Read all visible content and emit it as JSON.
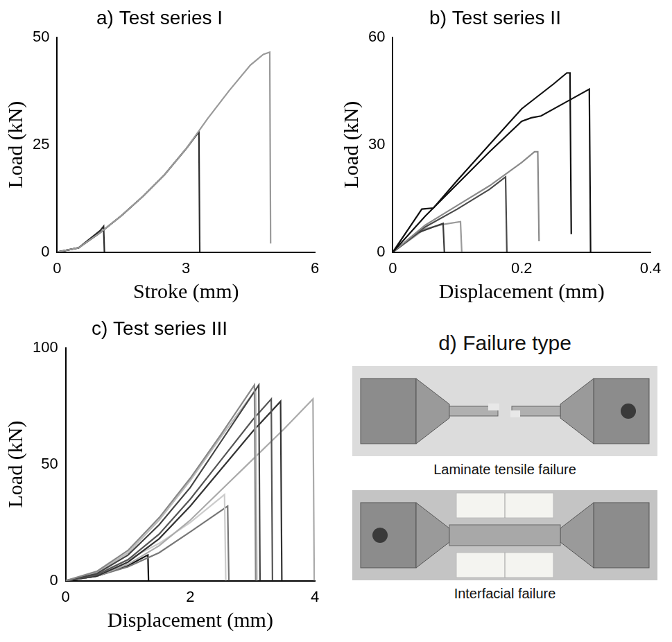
{
  "chart_data": [
    {
      "type": "line",
      "title": "a) Test series I",
      "x_label": "Stroke (mm)",
      "y_label": "Load (kN)",
      "xlim": [
        0,
        6
      ],
      "xticks": [
        0,
        3,
        6
      ],
      "ylim": [
        0,
        50
      ],
      "yticks": [
        0,
        25,
        50
      ],
      "grid": false,
      "series": [
        {
          "color": "#9a9a9a",
          "x": [
            0,
            0.5,
            1,
            1.5,
            2,
            2.5,
            3,
            3.5,
            4,
            4.5,
            4.8,
            4.95,
            4.97
          ],
          "values": [
            0,
            1,
            4.5,
            8.5,
            13,
            18,
            24,
            31,
            37.5,
            43.5,
            46,
            46.5,
            2
          ]
        },
        {
          "color": "#2a2a2a",
          "x": [
            0,
            0.5,
            1,
            1.5,
            2,
            2.5,
            3,
            3.3,
            3.32
          ],
          "values": [
            0,
            1,
            4.5,
            8.5,
            13,
            18,
            24,
            28,
            0
          ]
        },
        {
          "color": "#2a2a2a",
          "x": [
            0,
            0.5,
            1,
            1.08,
            1.1
          ],
          "values": [
            0,
            1,
            5,
            6,
            0
          ]
        }
      ]
    },
    {
      "type": "line",
      "title": "b) Test series II",
      "x_label": "Displacement (mm)",
      "y_label": "Load (kN)",
      "xlim": [
        0,
        0.4
      ],
      "xticks": [
        0,
        0.2,
        0.4
      ],
      "ylim": [
        0,
        60
      ],
      "yticks": [
        0,
        30,
        60
      ],
      "grid": false,
      "series": [
        {
          "color": "#111111",
          "x": [
            0,
            0.045,
            0.063,
            0.1,
            0.15,
            0.2,
            0.25,
            0.27,
            0.275,
            0.277
          ],
          "values": [
            0,
            12,
            12.3,
            20,
            30,
            40,
            47,
            50,
            50,
            5
          ]
        },
        {
          "color": "#111111",
          "x": [
            0,
            0.05,
            0.1,
            0.15,
            0.2,
            0.215,
            0.23,
            0.27,
            0.305,
            0.307
          ],
          "values": [
            0,
            10,
            19,
            28,
            36.5,
            37.5,
            38,
            42,
            45.5,
            0
          ]
        },
        {
          "color": "#8a8a8a",
          "x": [
            0,
            0.05,
            0.1,
            0.15,
            0.2,
            0.22,
            0.225,
            0.227
          ],
          "values": [
            0,
            7.5,
            13,
            18.5,
            25,
            28,
            28,
            3
          ]
        },
        {
          "color": "#4a4a4a",
          "x": [
            0,
            0.05,
            0.1,
            0.15,
            0.175,
            0.177
          ],
          "values": [
            0,
            7,
            12,
            17.5,
            21,
            0
          ]
        },
        {
          "color": "#3a3a3a",
          "x": [
            0,
            0.04,
            0.078,
            0.08
          ],
          "values": [
            0,
            5.5,
            8,
            0
          ]
        },
        {
          "color": "#9a9a9a",
          "x": [
            0,
            0.05,
            0.08,
            0.105,
            0.107
          ],
          "values": [
            0,
            6.5,
            7.8,
            8.5,
            0
          ]
        }
      ]
    },
    {
      "type": "line",
      "title": "c) Test series III",
      "x_label": "Displacement (mm)",
      "y_label": "Load (kN)",
      "xlim": [
        0,
        4
      ],
      "xticks": [
        0,
        2,
        4
      ],
      "ylim": [
        0,
        100
      ],
      "yticks": [
        0,
        50,
        100
      ],
      "grid": false,
      "series": [
        {
          "color": "#888888",
          "x": [
            0,
            0.5,
            1,
            1.5,
            2,
            2.5,
            3.03,
            3.05
          ],
          "values": [
            0,
            4,
            13,
            27,
            44,
            63,
            84,
            0
          ]
        },
        {
          "color": "#444444",
          "x": [
            0,
            0.5,
            1,
            1.5,
            2,
            2.5,
            3.1,
            3.12
          ],
          "values": [
            0,
            3,
            11,
            24,
            40,
            60,
            84,
            0
          ]
        },
        {
          "color": "#bbbbbb",
          "x": [
            0,
            0.5,
            1,
            1.5,
            2,
            2.5,
            3.05,
            3.07
          ],
          "values": [
            0,
            3.5,
            12,
            26,
            43,
            62,
            82,
            0
          ]
        },
        {
          "color": "#555555",
          "x": [
            0,
            0.5,
            1,
            1.5,
            2,
            2.5,
            3,
            3.3,
            3.32
          ],
          "values": [
            0,
            2.5,
            9,
            20,
            35,
            52,
            69,
            78,
            0
          ]
        },
        {
          "color": "#333333",
          "x": [
            0,
            0.5,
            1,
            1.5,
            2,
            2.5,
            3,
            3.45,
            3.47
          ],
          "values": [
            0,
            2,
            8,
            18,
            32,
            48,
            64,
            77,
            0
          ]
        },
        {
          "color": "#aaaaaa",
          "x": [
            0,
            0.5,
            1,
            1.5,
            2,
            2.5,
            3,
            3.5,
            3.97,
            3.99
          ],
          "values": [
            0,
            2,
            7,
            15,
            26,
            39,
            52,
            65,
            78,
            0
          ]
        },
        {
          "color": "#cccccc",
          "x": [
            0,
            0.5,
            1,
            1.5,
            2,
            2.55,
            2.57
          ],
          "values": [
            0,
            3,
            9,
            16,
            25,
            37,
            0
          ]
        },
        {
          "color": "#777777",
          "x": [
            0,
            0.5,
            1,
            1.5,
            2,
            2.6,
            2.62
          ],
          "values": [
            0,
            2,
            6,
            12,
            21,
            32,
            0
          ]
        },
        {
          "color": "#111111",
          "x": [
            0,
            0.5,
            1,
            1.32,
            1.33
          ],
          "values": [
            0,
            2,
            6.5,
            11,
            0
          ]
        }
      ]
    }
  ],
  "photo_panel": {
    "title": "d) Failure type",
    "captions": [
      "Laminate tensile failure",
      "Interfacial failure"
    ]
  }
}
